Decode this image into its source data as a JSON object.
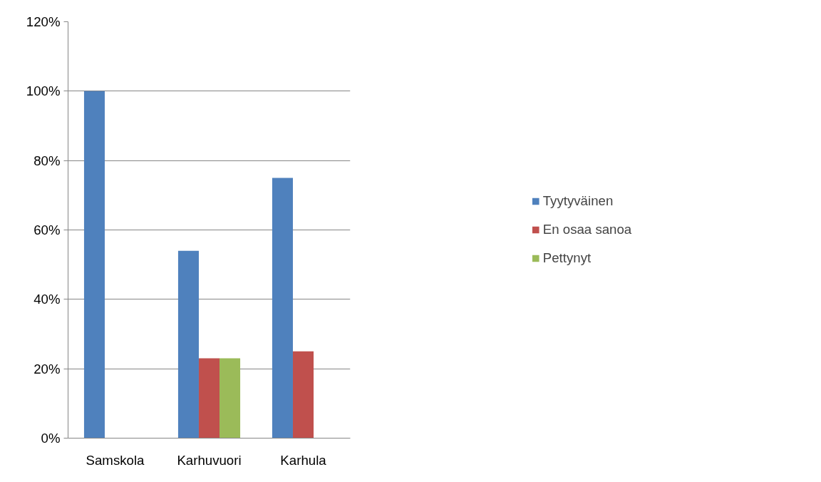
{
  "chart_data": {
    "type": "bar",
    "categories": [
      "Samskola",
      "Karhuvuori",
      "Karhula"
    ],
    "series": [
      {
        "name": "Tyytyväinen",
        "color": "#4f81bd",
        "values": [
          100,
          54,
          75
        ]
      },
      {
        "name": "En osaa sanoa",
        "color": "#c0504d",
        "values": [
          0,
          23,
          25
        ]
      },
      {
        "name": "Pettynyt",
        "color": "#9bbb59",
        "values": [
          0,
          23,
          0
        ]
      }
    ],
    "ylim": [
      0,
      120
    ],
    "yticks": [
      {
        "value": 0,
        "label": "0%"
      },
      {
        "value": 20,
        "label": "20%"
      },
      {
        "value": 40,
        "label": "40%"
      },
      {
        "value": 60,
        "label": "60%"
      },
      {
        "value": 80,
        "label": "80%"
      },
      {
        "value": 100,
        "label": "100%"
      },
      {
        "value": 120,
        "label": "120%"
      }
    ],
    "grid": "y",
    "legend": "right"
  }
}
